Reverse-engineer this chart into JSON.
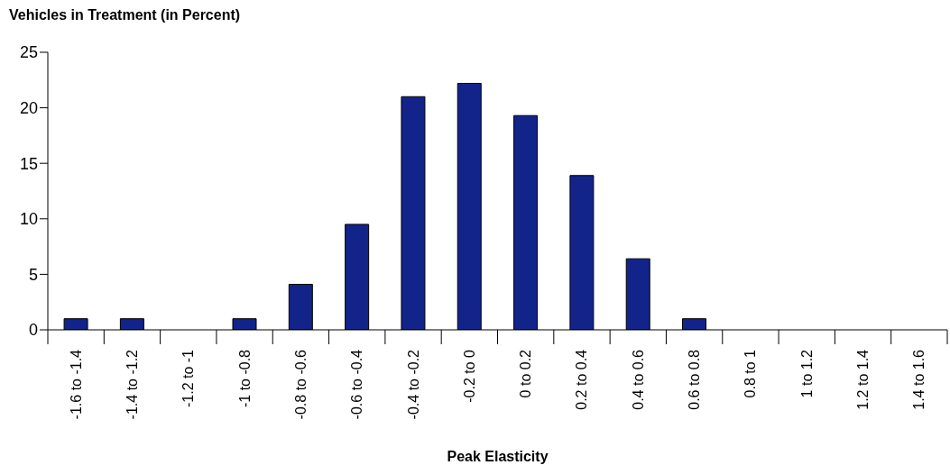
{
  "chart_data": {
    "type": "bar",
    "ylabel": "Vehicles in Treatment (in Percent)",
    "xlabel": "Peak Elasticity",
    "categories": [
      "-1.6 to -1.4",
      "-1.4 to -1.2",
      "-1.2 to -1",
      "-1 to -0.8",
      "-0.8 to -0.6",
      "-0.6 to -0.4",
      "-0.4 to -0.2",
      "-0.2 to 0",
      "0 to 0.2",
      "0.2 to 0.4",
      "0.4 to 0.6",
      "0.6 to 0.8",
      "0.8 to 1",
      "1 to 1.2",
      "1.2 to 1.4",
      "1.4 to 1.6"
    ],
    "values": [
      1,
      1,
      0,
      1,
      4.1,
      9.5,
      21,
      22.2,
      19.3,
      13.9,
      6.4,
      1,
      0,
      0,
      0,
      0
    ],
    "color": "#12248a",
    "ylim": [
      0,
      25
    ],
    "yticks": [
      0,
      5,
      10,
      15,
      20,
      25
    ],
    "grid": false,
    "legend": false
  }
}
